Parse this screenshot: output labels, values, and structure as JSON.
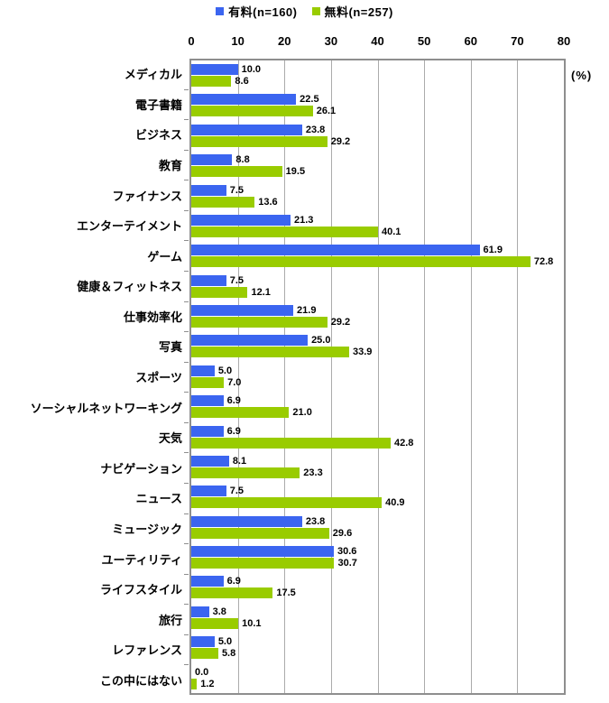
{
  "colors": {
    "paid_bar": "#3B65F0",
    "free_bar": "#99CC00",
    "plot_border": "#8E8E8E",
    "gridline": "#ABABAB",
    "text": "#000000"
  },
  "legend": [
    {
      "label": "有料(n=160)",
      "color": "#3B65F0"
    },
    {
      "label": "無料(n=257)",
      "color": "#99CC00"
    }
  ],
  "axis": {
    "unit_label": "(%)",
    "x_ticks": [
      0,
      10,
      20,
      30,
      40,
      50,
      60,
      70,
      80
    ]
  },
  "chart_data": {
    "type": "bar",
    "orientation": "horizontal",
    "title": "",
    "xlabel": "(%)",
    "ylabel": "",
    "xlim": [
      0,
      80
    ],
    "grid": true,
    "legend_position": "top",
    "categories": [
      "メディカル",
      "電子書籍",
      "ビジネス",
      "教育",
      "ファイナンス",
      "エンターテイメント",
      "ゲーム",
      "健康＆フィットネス",
      "仕事効率化",
      "写真",
      "スポーツ",
      "ソーシャルネットワーキング",
      "天気",
      "ナビゲーション",
      "ニュース",
      "ミュージック",
      "ユーティリティ",
      "ライフスタイル",
      "旅行",
      "レファレンス",
      "この中にはない"
    ],
    "series": [
      {
        "name": "有料(n=160)",
        "color": "#3B65F0",
        "values": [
          10.0,
          22.5,
          23.8,
          8.8,
          7.5,
          21.3,
          61.9,
          7.5,
          21.9,
          25.0,
          5.0,
          6.9,
          6.9,
          8.1,
          7.5,
          23.8,
          30.6,
          6.9,
          3.8,
          5.0,
          0.0
        ]
      },
      {
        "name": "無料(n=257)",
        "color": "#99CC00",
        "values": [
          8.6,
          26.1,
          29.2,
          19.5,
          13.6,
          40.1,
          72.8,
          12.1,
          29.2,
          33.9,
          7.0,
          21.0,
          42.8,
          23.3,
          40.9,
          29.6,
          30.7,
          17.5,
          10.1,
          5.8,
          1.2
        ]
      }
    ]
  }
}
